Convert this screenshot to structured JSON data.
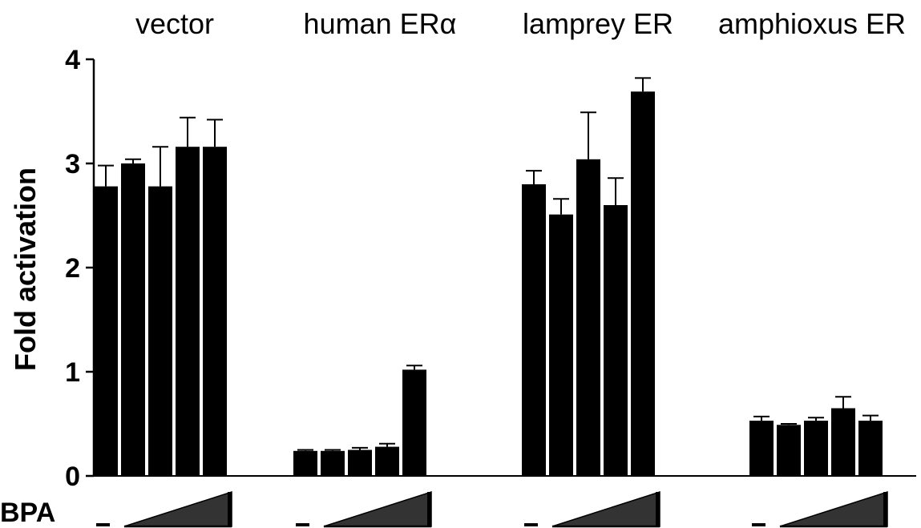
{
  "chart_data": {
    "type": "bar",
    "groups": [
      {
        "name": "vector",
        "values": [
          2.78,
          3.0,
          2.78,
          3.16,
          3.16
        ],
        "errors": [
          0.2,
          0.04,
          0.38,
          0.28,
          0.26
        ]
      },
      {
        "name": "human ERα",
        "values": [
          0.24,
          0.24,
          0.25,
          0.28,
          1.02
        ],
        "errors": [
          0.01,
          0.01,
          0.02,
          0.03,
          0.04
        ]
      },
      {
        "name": "lamprey ER",
        "values": [
          2.8,
          2.51,
          3.04,
          2.6,
          3.69
        ],
        "errors": [
          0.13,
          0.15,
          0.45,
          0.26,
          0.13
        ]
      },
      {
        "name": "amphioxus ER",
        "values": [
          0.53,
          0.49,
          0.53,
          0.65,
          0.53
        ],
        "errors": [
          0.04,
          0.01,
          0.03,
          0.11,
          0.05
        ]
      }
    ],
    "ylabel": "Fold activation",
    "ylim": [
      0,
      4
    ],
    "yticks": [
      "0",
      "1",
      "2",
      "3",
      "4"
    ],
    "treatment_label": "BPA",
    "control_symbol": "–",
    "bar_color": "#000000"
  }
}
